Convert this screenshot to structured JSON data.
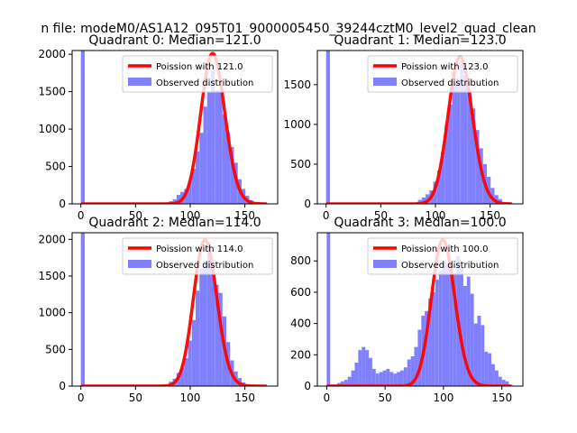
{
  "figure": {
    "suptitle": "n file: modeM0/AS1A12_095T01_9000005450_39244cztM0_level2_quad_clean"
  },
  "chart_data": [
    {
      "type": "bar",
      "title": "Quadrant 0: Median=121.0",
      "xlim": [
        -8,
        180
      ],
      "ylim": [
        0,
        2050
      ],
      "xticks": [
        0,
        50,
        100,
        150
      ],
      "yticks": [
        0,
        500,
        1000,
        1500,
        2000
      ],
      "legend": {
        "placement": "top-right",
        "entries": [
          "Poission with 121.0",
          "Observed distribution"
        ]
      },
      "series": [
        {
          "name": "Observed distribution",
          "kind": "hist",
          "color": "#8080ff",
          "bin_width": 3.5,
          "x": [
            0,
            70,
            73.5,
            77,
            80.5,
            84,
            87.5,
            91,
            94.5,
            98,
            101.5,
            105,
            108.5,
            112,
            115.5,
            119,
            122.5,
            126,
            129.5,
            133,
            136.5,
            140,
            143.5,
            147,
            150.5,
            154,
            157.5
          ],
          "values": [
            2100,
            5,
            10,
            20,
            35,
            60,
            120,
            160,
            200,
            310,
            470,
            700,
            950,
            1300,
            1500,
            1780,
            1520,
            1500,
            1200,
            960,
            760,
            550,
            330,
            200,
            110,
            50,
            20
          ]
        },
        {
          "name": "Poission with 121.0",
          "kind": "line",
          "color": "#ff0000",
          "mu": 121.0,
          "scale": 2010
        }
      ]
    },
    {
      "type": "bar",
      "title": "Quadrant 1: Median=123.0",
      "xlim": [
        -8,
        180
      ],
      "ylim": [
        0,
        1930
      ],
      "xticks": [
        0,
        50,
        100,
        150
      ],
      "yticks": [
        0,
        500,
        1000,
        1500
      ],
      "legend": {
        "placement": "top-right",
        "entries": [
          "Poission with 123.0",
          "Observed distribution"
        ]
      },
      "series": [
        {
          "name": "Observed distribution",
          "kind": "hist",
          "color": "#8080ff",
          "bin_width": 3.5,
          "x": [
            0,
            84,
            87.5,
            91,
            94.5,
            98,
            101.5,
            105,
            108.5,
            112,
            115.5,
            119,
            122.5,
            126,
            129.5,
            133,
            136.5,
            140,
            143.5,
            147,
            150.5,
            154,
            157.5
          ],
          "values": [
            2000,
            50,
            80,
            120,
            170,
            280,
            420,
            650,
            1000,
            1250,
            1520,
            1580,
            1800,
            1620,
            1400,
            1200,
            930,
            700,
            500,
            340,
            200,
            110,
            60
          ]
        },
        {
          "name": "Poission with 123.0",
          "kind": "line",
          "color": "#ff0000",
          "mu": 123.0,
          "scale": 1850
        }
      ]
    },
    {
      "type": "bar",
      "title": "Quadrant 2: Median=114.0",
      "xlim": [
        -8,
        180
      ],
      "ylim": [
        0,
        2090
      ],
      "xticks": [
        0,
        50,
        100,
        150
      ],
      "yticks": [
        0,
        500,
        1000,
        1500,
        2000
      ],
      "legend": {
        "placement": "top-right",
        "entries": [
          "Poission with 114.0",
          "Observed distribution"
        ]
      },
      "series": [
        {
          "name": "Observed distribution",
          "kind": "hist",
          "color": "#8080ff",
          "bin_width": 3.5,
          "x": [
            0,
            77,
            80.5,
            84,
            87.5,
            91,
            94.5,
            98,
            101.5,
            105,
            108.5,
            112,
            115.5,
            119,
            122.5,
            126,
            129.5,
            133,
            136.5,
            140,
            143.5,
            147,
            150.5
          ],
          "values": [
            2100,
            20,
            60,
            100,
            180,
            250,
            380,
            620,
            900,
            1300,
            1600,
            1700,
            1960,
            1550,
            1380,
            1270,
            950,
            600,
            350,
            200,
            110,
            50,
            20
          ]
        },
        {
          "name": "Poission with 114.0",
          "kind": "line",
          "color": "#ff0000",
          "mu": 114.0,
          "scale": 1990
        }
      ]
    },
    {
      "type": "bar",
      "title": "Quadrant 3: Median=100.0",
      "xlim": [
        -8,
        168
      ],
      "ylim": [
        0,
        980
      ],
      "xticks": [
        0,
        50,
        100,
        150
      ],
      "yticks": [
        0,
        200,
        400,
        600,
        800
      ],
      "legend": {
        "placement": "top-right",
        "entries": [
          "Poission with 100.0",
          "Observed distribution"
        ]
      },
      "series": [
        {
          "name": "Observed distribution",
          "kind": "hist",
          "color": "#8080ff",
          "bin_width": 3.0,
          "x": [
            0,
            3,
            6,
            9,
            12,
            15,
            18,
            21,
            24,
            27,
            30,
            33,
            36,
            39,
            42,
            45,
            48,
            51,
            54,
            57,
            60,
            63,
            66,
            69,
            72,
            75,
            78,
            81,
            84,
            87,
            90,
            93,
            96,
            99,
            102,
            105,
            108,
            111,
            114,
            117,
            120,
            123,
            126,
            129,
            132,
            135,
            138,
            141,
            144,
            147,
            150,
            153,
            156
          ],
          "values": [
            1000,
            10,
            10,
            20,
            30,
            40,
            60,
            100,
            150,
            230,
            250,
            230,
            180,
            110,
            80,
            90,
            100,
            110,
            90,
            80,
            90,
            100,
            120,
            170,
            190,
            250,
            360,
            450,
            480,
            560,
            600,
            680,
            740,
            800,
            780,
            770,
            720,
            830,
            760,
            640,
            700,
            590,
            400,
            450,
            390,
            220,
            210,
            140,
            100,
            60,
            40,
            30,
            10
          ]
        },
        {
          "name": "Poission with 100.0",
          "kind": "line",
          "color": "#ff0000",
          "mu": 100.0,
          "scale": 935
        }
      ]
    }
  ]
}
